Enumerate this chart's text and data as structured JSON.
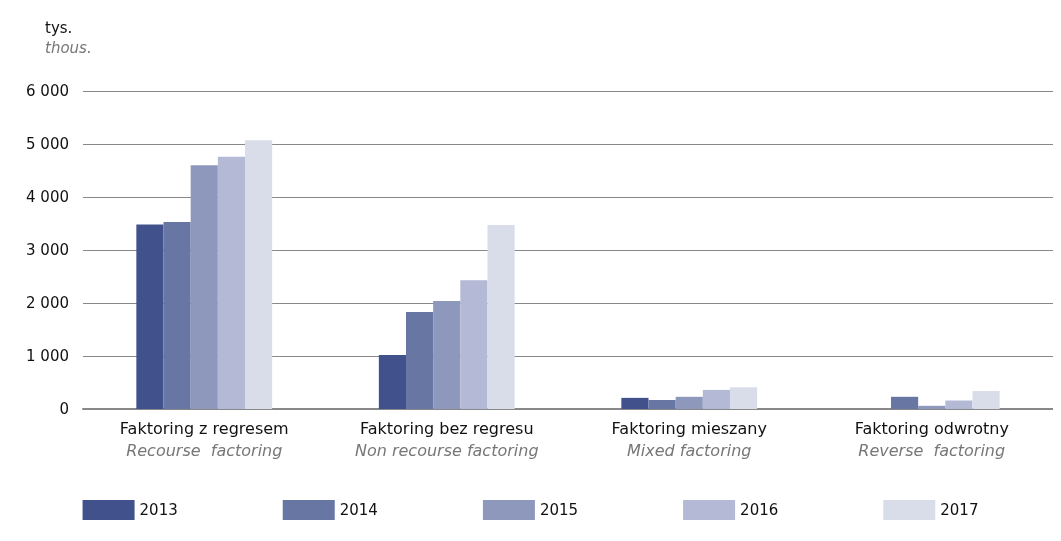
{
  "chart_data": {
    "type": "bar",
    "ylabel": "tys.\nthous.",
    "categories": [
      "Faktoring z regresem\nRecourse  factoring",
      "Faktoring bez regresu\nNon recourse factoring",
      "Faktoring mieszany\nMixed factoring",
      "Faktoring odwrotny\nReverse  factoring"
    ],
    "series": [
      {
        "name": "2013",
        "color": "#41518b",
        "values": [
          3480,
          1020,
          210,
          null
        ]
      },
      {
        "name": "2014",
        "color": "#6876a4",
        "values": [
          3530,
          1830,
          170,
          230
        ]
      },
      {
        "name": "2015",
        "color": "#8e98bc",
        "values": [
          4600,
          2040,
          230,
          60
        ]
      },
      {
        "name": "2016",
        "color": "#b4b9d5",
        "values": [
          4760,
          2430,
          360,
          160
        ]
      },
      {
        "name": "2017",
        "color": "#d9dde9",
        "values": [
          5070,
          3470,
          410,
          340
        ]
      }
    ],
    "ylim": [
      0,
      6000
    ],
    "yticks": [
      0,
      {
        "value": 1000,
        "label": "1 000"
      },
      {
        "value": 2000,
        "label": "2 000"
      },
      {
        "value": 3000,
        "label": "3 000"
      },
      {
        "value": 4000,
        "label": "4 000"
      },
      {
        "value": 5000,
        "label": "5 000"
      },
      {
        "value": 6000,
        "label": "6 000"
      }
    ],
    "grid": "y",
    "legend": "bottom"
  }
}
